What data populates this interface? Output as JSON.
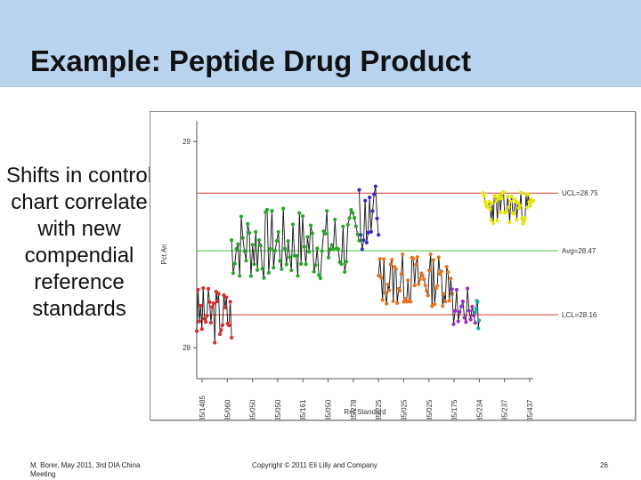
{
  "slide": {
    "title": "Example: Peptide Drug Product",
    "side_text": "Shifts in control chart correlate with new compendial reference standards",
    "footer_left": "M. Borer, May 2011, 3rd DIA China Meeting",
    "footer_center": "Copyright © 2011 Eli Lilly and Company",
    "footer_right": "26"
  },
  "colors": {
    "title_bar": "#b9d3ee",
    "ucl_line": "#e03a3a",
    "lcl_line": "#e03a3a",
    "avg_line": "#44c444",
    "connector": "#111111"
  },
  "chart_data": {
    "type": "scatter",
    "title": "",
    "xlabel": "Ref Standard",
    "ylabel": "Pct An",
    "ylim": [
      27.85,
      29.1
    ],
    "y_ticks": [
      28,
      29
    ],
    "x_tick_labels": [
      "35/1485",
      "35/060",
      "35/050",
      "35/050",
      "35/161",
      "35/050",
      "35/278",
      "35/225",
      "35/025",
      "35/025",
      "35/175",
      "35/234",
      "35/237",
      "35/437"
    ],
    "grid": false,
    "control_limits": [
      {
        "label": "UCL=28.75",
        "value": 28.75
      },
      {
        "label": "Avg=28.47",
        "value": 28.47
      },
      {
        "label": "LCL=28.16",
        "value": 28.16
      }
    ],
    "series": [
      {
        "color": "#e02828",
        "x_range": [
          0,
          9
        ],
        "level": 28.16,
        "spread": 0.14,
        "points": 28,
        "seed": 3
      },
      {
        "color": "#22aa22",
        "x_range": [
          9,
          42
        ],
        "level": 28.5,
        "spread": 0.18,
        "points": 80,
        "seed": 7
      },
      {
        "color": "#3a2ac8",
        "x_range": [
          42,
          47
        ],
        "level": 28.62,
        "spread": 0.18,
        "points": 14,
        "seed": 11
      },
      {
        "color": "#e8731c",
        "x_range": [
          47,
          66
        ],
        "level": 28.33,
        "spread": 0.13,
        "points": 56,
        "seed": 13
      },
      {
        "color": "#9a2ad6",
        "x_range": [
          66,
          72
        ],
        "level": 28.2,
        "spread": 0.1,
        "points": 16,
        "seed": 17
      },
      {
        "color": "#10b0a0",
        "x_range": [
          72,
          73
        ],
        "level": 28.15,
        "spread": 0.12,
        "points": 6,
        "seed": 19
      },
      {
        "color": "#e6e600",
        "x_range": [
          74,
          87
        ],
        "level": 28.68,
        "spread": 0.08,
        "points": 50,
        "seed": 23
      }
    ],
    "x_extent": [
      0,
      87
    ]
  }
}
